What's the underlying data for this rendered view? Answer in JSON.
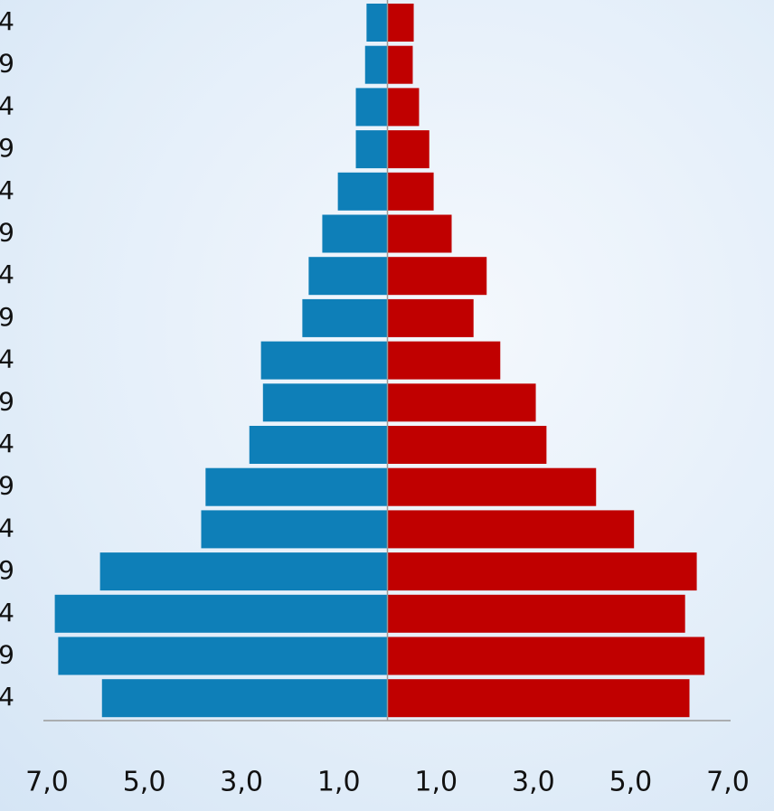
{
  "chart_data": {
    "type": "pyramid",
    "categories": [
      "4",
      "9",
      "4",
      "9",
      "4",
      "9",
      "4",
      "9",
      "4",
      "9",
      "4",
      "9",
      "4",
      "9",
      "4",
      "9",
      "4"
    ],
    "series": [
      {
        "color": "#0e7fb8",
        "side": "left",
        "values": [
          0.43,
          0.46,
          0.65,
          0.65,
          1.02,
          1.34,
          1.62,
          1.75,
          2.6,
          2.56,
          2.84,
          3.74,
          3.83,
          5.91,
          6.84,
          6.77,
          5.87
        ]
      },
      {
        "color": "#c00000",
        "side": "right",
        "values": [
          0.54,
          0.52,
          0.65,
          0.86,
          0.95,
          1.32,
          2.04,
          1.77,
          2.32,
          3.05,
          3.27,
          4.29,
          5.07,
          6.36,
          6.12,
          6.52,
          6.21
        ]
      }
    ],
    "xlim": [
      -7,
      7
    ],
    "xticks": [
      {
        "value": -7,
        "label": "7,0"
      },
      {
        "value": -5,
        "label": "5,0"
      },
      {
        "value": -3,
        "label": "3,0"
      },
      {
        "value": -1,
        "label": "1,0"
      },
      {
        "value": 1,
        "label": "1,0"
      },
      {
        "value": 3,
        "label": "3,0"
      },
      {
        "value": 5,
        "label": "5,0"
      },
      {
        "value": 7,
        "label": "7,0"
      }
    ]
  }
}
